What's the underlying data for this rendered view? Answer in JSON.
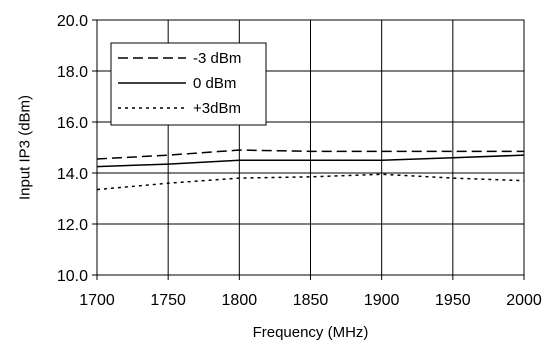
{
  "chart_data": {
    "type": "line",
    "title": "",
    "xlabel": "Frequency (MHz)",
    "ylabel": "Input IP3 (dBm)",
    "xlim": [
      1700,
      2000
    ],
    "ylim": [
      10.0,
      20.0
    ],
    "x_ticks": [
      "1700",
      "1750",
      "1800",
      "1850",
      "1900",
      "1950",
      "2000"
    ],
    "y_ticks": [
      "10.0",
      "12.0",
      "14.0",
      "16.0",
      "18.0",
      "20.0"
    ],
    "grid": true,
    "legend_position": "top-left",
    "series": [
      {
        "name": "-3 dBm",
        "style": "dashed",
        "color": "#000000",
        "x": [
          1700,
          1750,
          1800,
          1850,
          1900,
          1950,
          2000
        ],
        "y": [
          14.55,
          14.7,
          14.9,
          14.85,
          14.85,
          14.85,
          14.85
        ]
      },
      {
        "name": "0 dBm",
        "style": "solid",
        "color": "#000000",
        "x": [
          1700,
          1750,
          1800,
          1850,
          1900,
          1950,
          2000
        ],
        "y": [
          14.25,
          14.35,
          14.5,
          14.5,
          14.5,
          14.6,
          14.7
        ]
      },
      {
        "name": "+3dBm",
        "style": "dotted",
        "color": "#000000",
        "x": [
          1700,
          1750,
          1800,
          1850,
          1900,
          1950,
          2000
        ],
        "y": [
          13.35,
          13.6,
          13.8,
          13.85,
          13.95,
          13.8,
          13.7
        ]
      }
    ]
  }
}
